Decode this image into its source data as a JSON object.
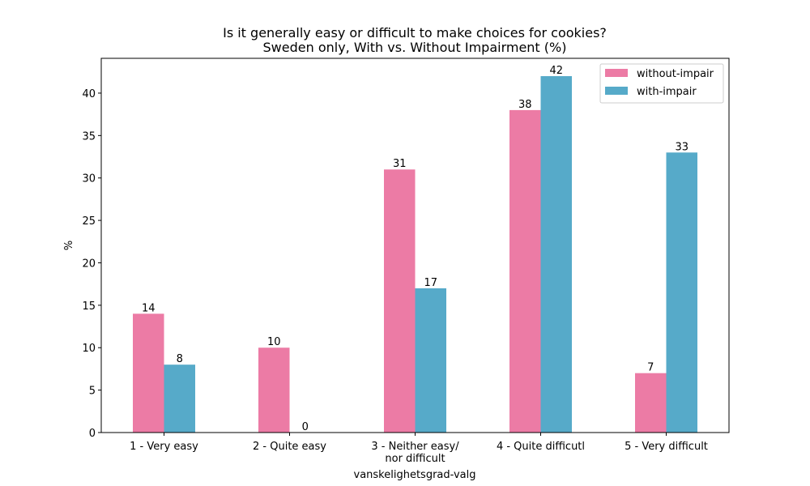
{
  "chart_data": {
    "type": "bar",
    "title": "Is it generally easy or difficult to make choices for cookies?",
    "subtitle": "Sweden only, With vs. Without Impairment (%)",
    "xlabel": "vanskelighetsgrad-valg",
    "ylabel": "%",
    "categories": [
      [
        "1 - Very easy"
      ],
      [
        "2 - Quite easy"
      ],
      [
        "3 - Neither easy/",
        "nor difficult"
      ],
      [
        "4 - Quite difficutl"
      ],
      [
        "5 - Very difficult"
      ]
    ],
    "series": [
      {
        "name": "without-impair",
        "color": "#EC7BA5",
        "values": [
          14,
          10,
          31,
          38,
          7
        ]
      },
      {
        "name": "with-impair",
        "color": "#56AAC9",
        "values": [
          8,
          0,
          17,
          42,
          33
        ]
      }
    ],
    "ylim": [
      0,
      44.1
    ],
    "yticks": [
      0,
      5,
      10,
      15,
      20,
      25,
      30,
      35,
      40
    ],
    "grid": false,
    "legend": "top-right"
  }
}
